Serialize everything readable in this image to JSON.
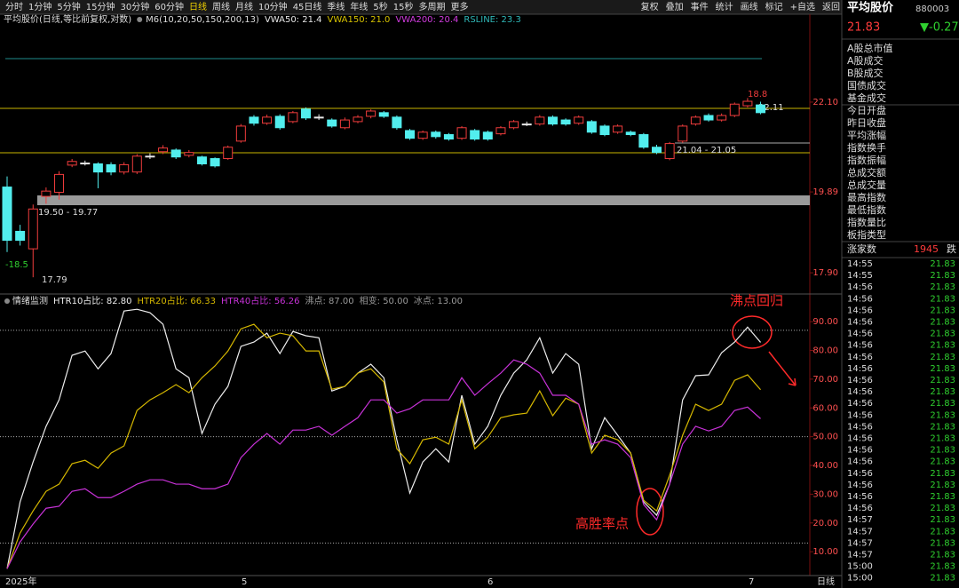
{
  "toolbar": {
    "periods": [
      "分时",
      "1分钟",
      "5分钟",
      "15分钟",
      "30分钟",
      "60分钟",
      "日线",
      "周线",
      "月线",
      "10分钟",
      "45日线",
      "季线",
      "年线",
      "5秒",
      "15秒",
      "多周期",
      "更多"
    ],
    "active": "日线",
    "tools": [
      "复权",
      "叠加",
      "事件",
      "统计",
      "画线",
      "标记",
      "+自选",
      "返回"
    ]
  },
  "price_chart": {
    "title": "平均股价(日线,等比前复权,对数)",
    "params": "M6(10,20,50,150,200,13)",
    "legend": [
      {
        "label": "VWA50: 21.4",
        "color": "#e8e8e8"
      },
      {
        "label": "VWA150: 21.0",
        "color": "#d6c200"
      },
      {
        "label": "VWA200: 20.4",
        "color": "#d23ce0"
      },
      {
        "label": "RSLINE: 23.3",
        "color": "#2fb8b8"
      }
    ],
    "open": [
      20.01,
      18.92,
      18.49,
      19.78,
      19.88,
      20.55,
      20.6,
      20.58,
      20.56,
      20.38,
      20.38,
      20.77,
      20.88,
      20.92,
      20.79,
      20.75,
      20.71,
      20.71,
      21.14,
      21.73,
      21.58,
      21.75,
      21.62,
      21.93,
      21.73,
      21.66,
      21.47,
      21.62,
      21.75,
      21.84,
      21.73,
      21.4,
      21.21,
      21.36,
      21.3,
      21.21,
      21.4,
      21.36,
      21.32,
      21.47,
      21.56,
      21.56,
      21.73,
      21.66,
      21.58,
      21.62,
      21.51,
      21.36,
      21.36,
      21.3,
      20.99,
      20.71,
      21.14,
      21.56,
      21.77,
      21.66,
      21.77,
      22.01,
      22.03
    ],
    "close": [
      18.7,
      18.7,
      19.47,
      19.91,
      20.32,
      20.64,
      20.6,
      20.38,
      20.38,
      20.56,
      20.77,
      20.77,
      20.97,
      20.75,
      20.86,
      20.58,
      20.53,
      20.99,
      21.51,
      21.58,
      21.73,
      21.47,
      21.84,
      21.71,
      21.73,
      21.51,
      21.66,
      21.73,
      21.88,
      21.75,
      21.47,
      21.21,
      21.36,
      21.25,
      21.19,
      21.47,
      21.19,
      21.19,
      21.47,
      21.62,
      21.56,
      21.73,
      21.56,
      21.56,
      21.73,
      21.36,
      21.3,
      21.51,
      21.3,
      20.99,
      20.86,
      21.08,
      21.51,
      21.73,
      21.66,
      21.77,
      22.05,
      22.12,
      21.84
    ],
    "high": [
      20.27,
      19.08,
      19.58,
      20.0,
      20.4,
      20.7,
      20.66,
      20.62,
      20.62,
      20.62,
      20.82,
      20.84,
      21.04,
      20.96,
      20.92,
      20.78,
      20.74,
      21.03,
      21.56,
      21.78,
      21.79,
      21.8,
      21.88,
      21.97,
      21.8,
      21.7,
      21.72,
      21.78,
      21.92,
      21.88,
      21.77,
      21.44,
      21.4,
      21.4,
      21.34,
      21.51,
      21.44,
      21.4,
      21.51,
      21.66,
      21.62,
      21.78,
      21.77,
      21.7,
      21.77,
      21.66,
      21.55,
      21.55,
      21.4,
      21.34,
      21.05,
      21.12,
      21.55,
      21.77,
      21.82,
      21.82,
      22.09,
      22.2,
      22.11
    ],
    "low": [
      18.41,
      18.57,
      17.79,
      19.6,
      19.7,
      20.5,
      20.54,
      19.98,
      20.3,
      20.32,
      20.33,
      20.7,
      20.82,
      20.7,
      20.74,
      20.54,
      20.49,
      20.68,
      21.1,
      21.52,
      21.54,
      21.42,
      21.58,
      21.66,
      21.66,
      21.47,
      21.43,
      21.58,
      21.7,
      21.71,
      21.42,
      21.17,
      21.17,
      21.2,
      21.15,
      21.17,
      21.15,
      21.15,
      21.28,
      21.43,
      21.51,
      21.52,
      21.52,
      21.52,
      21.54,
      21.32,
      21.26,
      21.32,
      21.26,
      20.95,
      20.82,
      20.67,
      21.1,
      21.52,
      21.62,
      21.62,
      21.73,
      21.97,
      21.8
    ],
    "ylim": [
      17.4,
      24.0
    ],
    "yticks": [
      {
        "value": 22.1,
        "label": "22.10"
      },
      19.89,
      {
        "value": 17.9,
        "label": "17.90"
      }
    ],
    "colors": {
      "up": "#f03c3c",
      "down": "#52eeee",
      "flat": "#e8e8e8"
    },
    "annotations": [
      "-18.5",
      "17.79",
      "19.50 - 19.77",
      "21.04 - 21.05",
      "18.8",
      "22.11"
    ]
  },
  "indicator_chart": {
    "title": "情绪监测",
    "series": [
      {
        "name": "HTR10占比: 82.80",
        "color": "#eeeeee",
        "values": [
          4.1,
          27.3,
          41.2,
          53.6,
          62.8,
          78.3,
          79.8,
          73.6,
          78.9,
          93.7,
          94.3,
          93.1,
          89.1,
          73.6,
          70.5,
          51.1,
          61.3,
          67.5,
          81.4,
          82.9,
          86.0,
          78.9,
          86.6,
          85.1,
          84.4,
          65.9,
          67.5,
          72.1,
          75.2,
          70.5,
          48.9,
          30.4,
          41.2,
          45.8,
          41.2,
          64.4,
          47.4,
          53.6,
          64.4,
          72.1,
          76.7,
          84.4,
          72.1,
          78.9,
          75.2,
          45.8,
          56.6,
          50.5,
          44.3,
          27.3,
          22.7,
          33.5,
          62.8,
          71.2,
          71.5,
          79.2,
          82.9,
          88.1,
          82.8
        ]
      },
      {
        "name": "HTR20占比: 66.33",
        "color": "#d6b800",
        "values": [
          4.1,
          16.5,
          24.2,
          31.0,
          33.5,
          40.6,
          41.8,
          39.0,
          44.3,
          46.8,
          59.1,
          62.8,
          65.3,
          68.1,
          65.3,
          70.5,
          74.6,
          79.8,
          87.5,
          89.1,
          84.4,
          86.0,
          85.1,
          79.8,
          79.8,
          66.5,
          67.5,
          72.1,
          73.6,
          69.0,
          45.8,
          40.6,
          48.9,
          49.8,
          47.4,
          62.8,
          45.8,
          49.8,
          56.6,
          57.6,
          58.2,
          65.9,
          57.3,
          63.4,
          61.3,
          44.3,
          50.5,
          48.9,
          44.3,
          27.9,
          24.2,
          36.6,
          50.5,
          61.3,
          59.1,
          61.3,
          69.6,
          71.5,
          66.33
        ]
      },
      {
        "name": "HTR40占比: 56.26",
        "color": "#c832d8",
        "values": [
          4.1,
          13.4,
          19.6,
          25.1,
          25.8,
          31.0,
          31.9,
          28.8,
          28.8,
          31.0,
          33.5,
          35.0,
          35.0,
          33.5,
          33.5,
          31.9,
          31.9,
          33.5,
          42.7,
          47.4,
          51.1,
          47.4,
          52.3,
          52.3,
          53.6,
          50.5,
          53.6,
          56.6,
          62.8,
          62.8,
          58.2,
          59.7,
          62.8,
          62.8,
          62.8,
          70.5,
          64.4,
          68.4,
          72.1,
          76.7,
          75.2,
          72.1,
          64.4,
          64.4,
          61.3,
          47.4,
          48.9,
          47.4,
          42.7,
          26.4,
          21.1,
          33.5,
          47.4,
          53.6,
          52.0,
          53.6,
          59.1,
          60.3,
          56.26
        ]
      }
    ],
    "levels": [
      {
        "label": "沸点: 87.00",
        "value": 87
      },
      {
        "label": "相变: 50.00",
        "value": 50
      },
      {
        "label": "冰点: 13.00",
        "value": 13
      }
    ],
    "ylim": [
      1.7,
      99
    ],
    "yticks": [
      {
        "value": 10,
        "label": "10.00"
      },
      {
        "value": 20,
        "label": "20.00"
      },
      {
        "value": 30,
        "label": "30.00"
      },
      {
        "value": 40,
        "label": "40.00"
      },
      {
        "value": 50,
        "label": "50.00"
      },
      {
        "value": 60,
        "label": "60.00"
      },
      {
        "value": 70,
        "label": "70.00"
      },
      {
        "value": 80,
        "label": "80.00"
      },
      {
        "value": 90,
        "label": "90.00"
      }
    ],
    "annotations": [
      "沸点回归",
      "高胜率点"
    ]
  },
  "x_axis": {
    "labels": [
      "2025年",
      "5",
      "6",
      "7"
    ],
    "period": "日线"
  },
  "quote": {
    "name": "平均股价",
    "code": "880003",
    "price": 21.83,
    "change": "▼-0.27",
    "items": [
      "A股总市值",
      "A股成交",
      "B股成交",
      "国债成交",
      "基金成交",
      "今日开盘",
      "昨日收盘",
      "平均涨幅",
      "指数换手",
      "指数振幅",
      "总成交额",
      "总成交量",
      "最高指数",
      "最低指数",
      "指数量比",
      "板指类型"
    ],
    "breadth": {
      "label": "涨家数",
      "value": 1945,
      "next": "跌"
    },
    "times": [
      "14:55",
      "14:55",
      "14:56",
      "14:56",
      "14:56",
      "14:56",
      "14:56",
      "14:56",
      "14:56",
      "14:56",
      "14:56",
      "14:56",
      "14:56",
      "14:56",
      "14:56",
      "14:56",
      "14:56",
      "14:56",
      "14:56",
      "14:56",
      "14:56",
      "14:56",
      "14:57",
      "14:57",
      "14:57",
      "14:57",
      "15:00",
      "15:00"
    ],
    "prices": [
      21.83,
      21.83,
      21.83,
      21.83,
      21.83,
      21.83,
      21.83,
      21.83,
      21.83,
      21.83,
      21.83,
      21.83,
      21.83,
      21.83,
      21.83,
      21.83,
      21.83,
      21.83,
      21.83,
      21.83,
      21.83,
      21.83,
      21.83,
      21.83,
      21.83,
      21.83,
      21.83,
      21.83
    ]
  }
}
